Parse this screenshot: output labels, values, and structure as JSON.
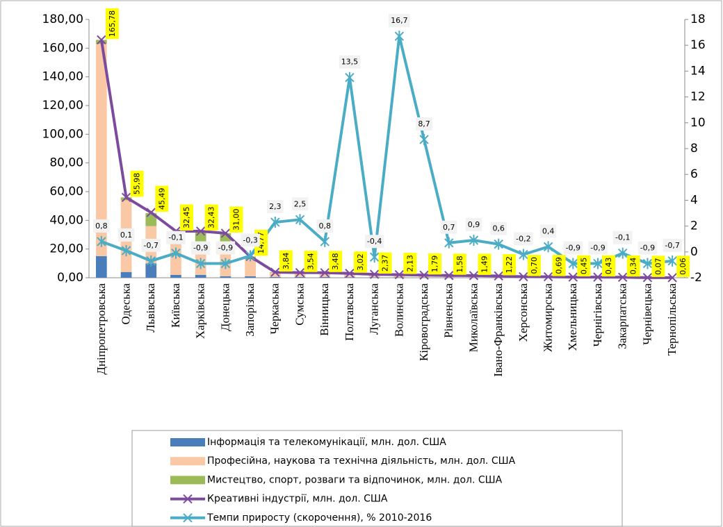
{
  "chart_data": {
    "type": "bar",
    "stacked": true,
    "categories": [
      "Дніпропетровська",
      "Одеська",
      "Львівська",
      "Київська",
      "Харківська",
      "Донецька",
      "Запорізька",
      "Черкаська",
      "Сумська",
      "Вінницька",
      "Полтавська",
      "Луганська",
      "Волинська",
      "Кіровоградська",
      "Рівненська",
      "Миколаївська",
      "Івано-Франківська",
      "Херсонська",
      "Житомирська",
      "Хмельницька",
      "Чернігівська",
      "Закарпатська",
      "Чернівецька",
      "Тернопільська"
    ],
    "series": [
      {
        "name": "Інформація та телекомунікації, млн. дол. США",
        "type": "bar",
        "color": "#4a7ebb",
        "values": [
          15,
          4,
          10,
          2,
          2,
          1,
          1,
          0.5,
          0.5,
          0.5,
          0.4,
          0.3,
          0.3,
          0.2,
          0.2,
          0.2,
          0.2,
          0.1,
          0.1,
          0.1,
          0.1,
          0.05,
          0.01,
          0.01
        ]
      },
      {
        "name": "Професійна, наукова та технічна діяльність, млн. дол. США",
        "type": "bar",
        "color": "#fac8a4",
        "values": [
          148,
          50,
          26,
          22,
          22,
          20,
          12,
          3,
          2.8,
          2.7,
          2.4,
          1.9,
          1.6,
          1.4,
          1.2,
          1.1,
          0.9,
          0.5,
          0.5,
          0.3,
          0.3,
          0.25,
          0.05,
          0.04
        ]
      },
      {
        "name": "Мистецтво, спорт, розваги та відпочинок, млн. дол. США",
        "type": "bar",
        "color": "#9bbb59",
        "values": [
          2.78,
          2,
          9,
          8,
          8,
          10,
          1.77,
          0.34,
          0.24,
          0.28,
          0.22,
          0.17,
          0.23,
          0.19,
          0.18,
          0.19,
          0.12,
          0.1,
          0.09,
          0.05,
          0.03,
          0.04,
          0.01,
          0.01
        ]
      },
      {
        "name": "Креативні індустрії, млн. дол. США",
        "type": "line",
        "marker": "x",
        "color": "#7c4b9e",
        "values": [
          165.78,
          55.98,
          45.49,
          32.45,
          32.43,
          31.0,
          14.77,
          3.84,
          3.54,
          3.48,
          3.02,
          2.37,
          2.13,
          1.79,
          1.58,
          1.49,
          1.22,
          0.7,
          0.69,
          0.45,
          0.43,
          0.34,
          0.07,
          0.06
        ],
        "value_labels": [
          "165,78",
          "55,98",
          "45,49",
          "32,45",
          "32,43",
          "31,00",
          "14,77",
          "3,84",
          "3,54",
          "3,48",
          "3,02",
          "2,37",
          "2,13",
          "1,79",
          "1,58",
          "1,49",
          "1,22",
          "0,70",
          "0,69",
          "0,45",
          "0,43",
          "0,34",
          "0,07",
          "0,06"
        ]
      },
      {
        "name": "Темпи приросту (скорочення), % 2010-2016",
        "type": "line",
        "marker": "star",
        "axis": "y2",
        "color": "#4bacc6",
        "values": [
          0.8,
          0.1,
          -0.7,
          -0.1,
          -0.9,
          -0.9,
          -0.3,
          2.3,
          2.5,
          0.8,
          13.5,
          -0.4,
          16.7,
          8.7,
          0.7,
          0.9,
          0.6,
          -0.2,
          0.4,
          -0.9,
          -0.9,
          -0.1,
          -0.9,
          -0.7
        ],
        "value_labels": [
          "0,8",
          "0,1",
          "-0,7",
          "-0,1",
          "-0,9",
          "-0,9",
          "-0,3",
          "2,3",
          "2,5",
          "0,8",
          "13,5",
          "-0,4",
          "16,7",
          "8,7",
          "0,7",
          "0,9",
          "0,6",
          "-0,2",
          "0,4",
          "-0,9",
          "-0,9",
          "-0,1",
          "-0,9",
          "-0,7"
        ]
      }
    ],
    "ylim": [
      0,
      180
    ],
    "yticks": [
      {
        "value": 0,
        "label": "0,00"
      },
      {
        "value": 20,
        "label": "20,00"
      },
      {
        "value": 40,
        "label": "40,00"
      },
      {
        "value": 60,
        "label": "60,00"
      },
      {
        "value": 80,
        "label": "80,00"
      },
      {
        "value": 100,
        "label": "100,00"
      },
      {
        "value": 120,
        "label": "120,00"
      },
      {
        "value": 140,
        "label": "140,00"
      },
      {
        "value": 160,
        "label": "160,00"
      },
      {
        "value": 180,
        "label": "180,00"
      }
    ],
    "y2lim": [
      -2,
      18
    ],
    "y2ticks": [
      -2,
      0,
      2,
      4,
      6,
      8,
      10,
      12,
      14,
      16,
      18
    ],
    "legend": "bottom"
  }
}
